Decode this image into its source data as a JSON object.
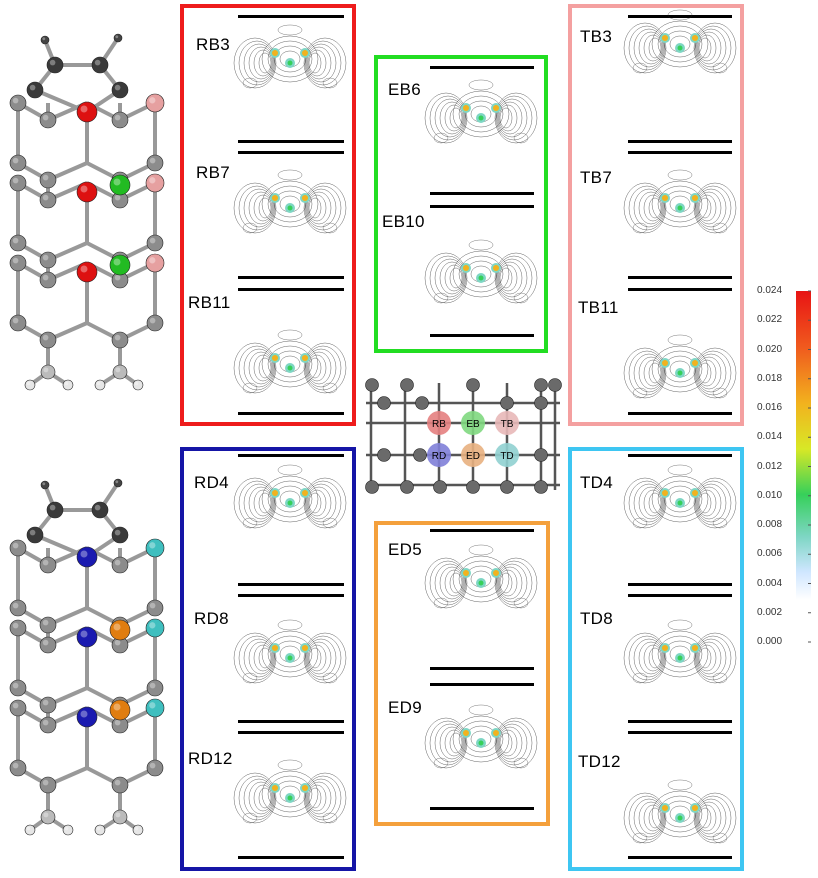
{
  "panels": {
    "RB": {
      "color": "#ee1c1c",
      "labels": [
        "RB3",
        "RB7",
        "RB11"
      ]
    },
    "EB": {
      "color": "#22dd22",
      "labels": [
        "EB6",
        "EB10"
      ]
    },
    "TB": {
      "color": "#f4a0a0",
      "labels": [
        "TB3",
        "TB7",
        "TB11"
      ]
    },
    "RD": {
      "color": "#1515a6",
      "labels": [
        "RD4",
        "RD8",
        "RD12"
      ]
    },
    "ED": {
      "color": "#f4a03c",
      "labels": [
        "ED5",
        "ED9"
      ]
    },
    "TD": {
      "color": "#3ec6f2",
      "labels": [
        "TD4",
        "TD8",
        "TD12"
      ]
    }
  },
  "site_labels": [
    "RB",
    "EB",
    "TB",
    "RD",
    "ED",
    "TD"
  ],
  "colorbar": {
    "ticks": [
      "0.024",
      "0.022",
      "0.020",
      "0.018",
      "0.016",
      "0.014",
      "0.012",
      "0.010",
      "0.008",
      "0.006",
      "0.004",
      "0.002",
      "0.000"
    ],
    "colors": [
      "#ffffff",
      "#cfe6ff",
      "#7ed6c4",
      "#36d05a",
      "#d8e826",
      "#f2b21e",
      "#f05a1e",
      "#e81414"
    ]
  },
  "structure_colors": {
    "dark_carbon": "#3a3a3a",
    "carbon": "#8c8c8c",
    "hydrogen": "#e6e6e6",
    "red_site": "#dd1111",
    "green_site": "#22bb22",
    "pink_site": "#e6a0a0",
    "blue_site": "#1a1ab0",
    "orange_site": "#e07d10",
    "cyan_site": "#3fbfbf"
  }
}
